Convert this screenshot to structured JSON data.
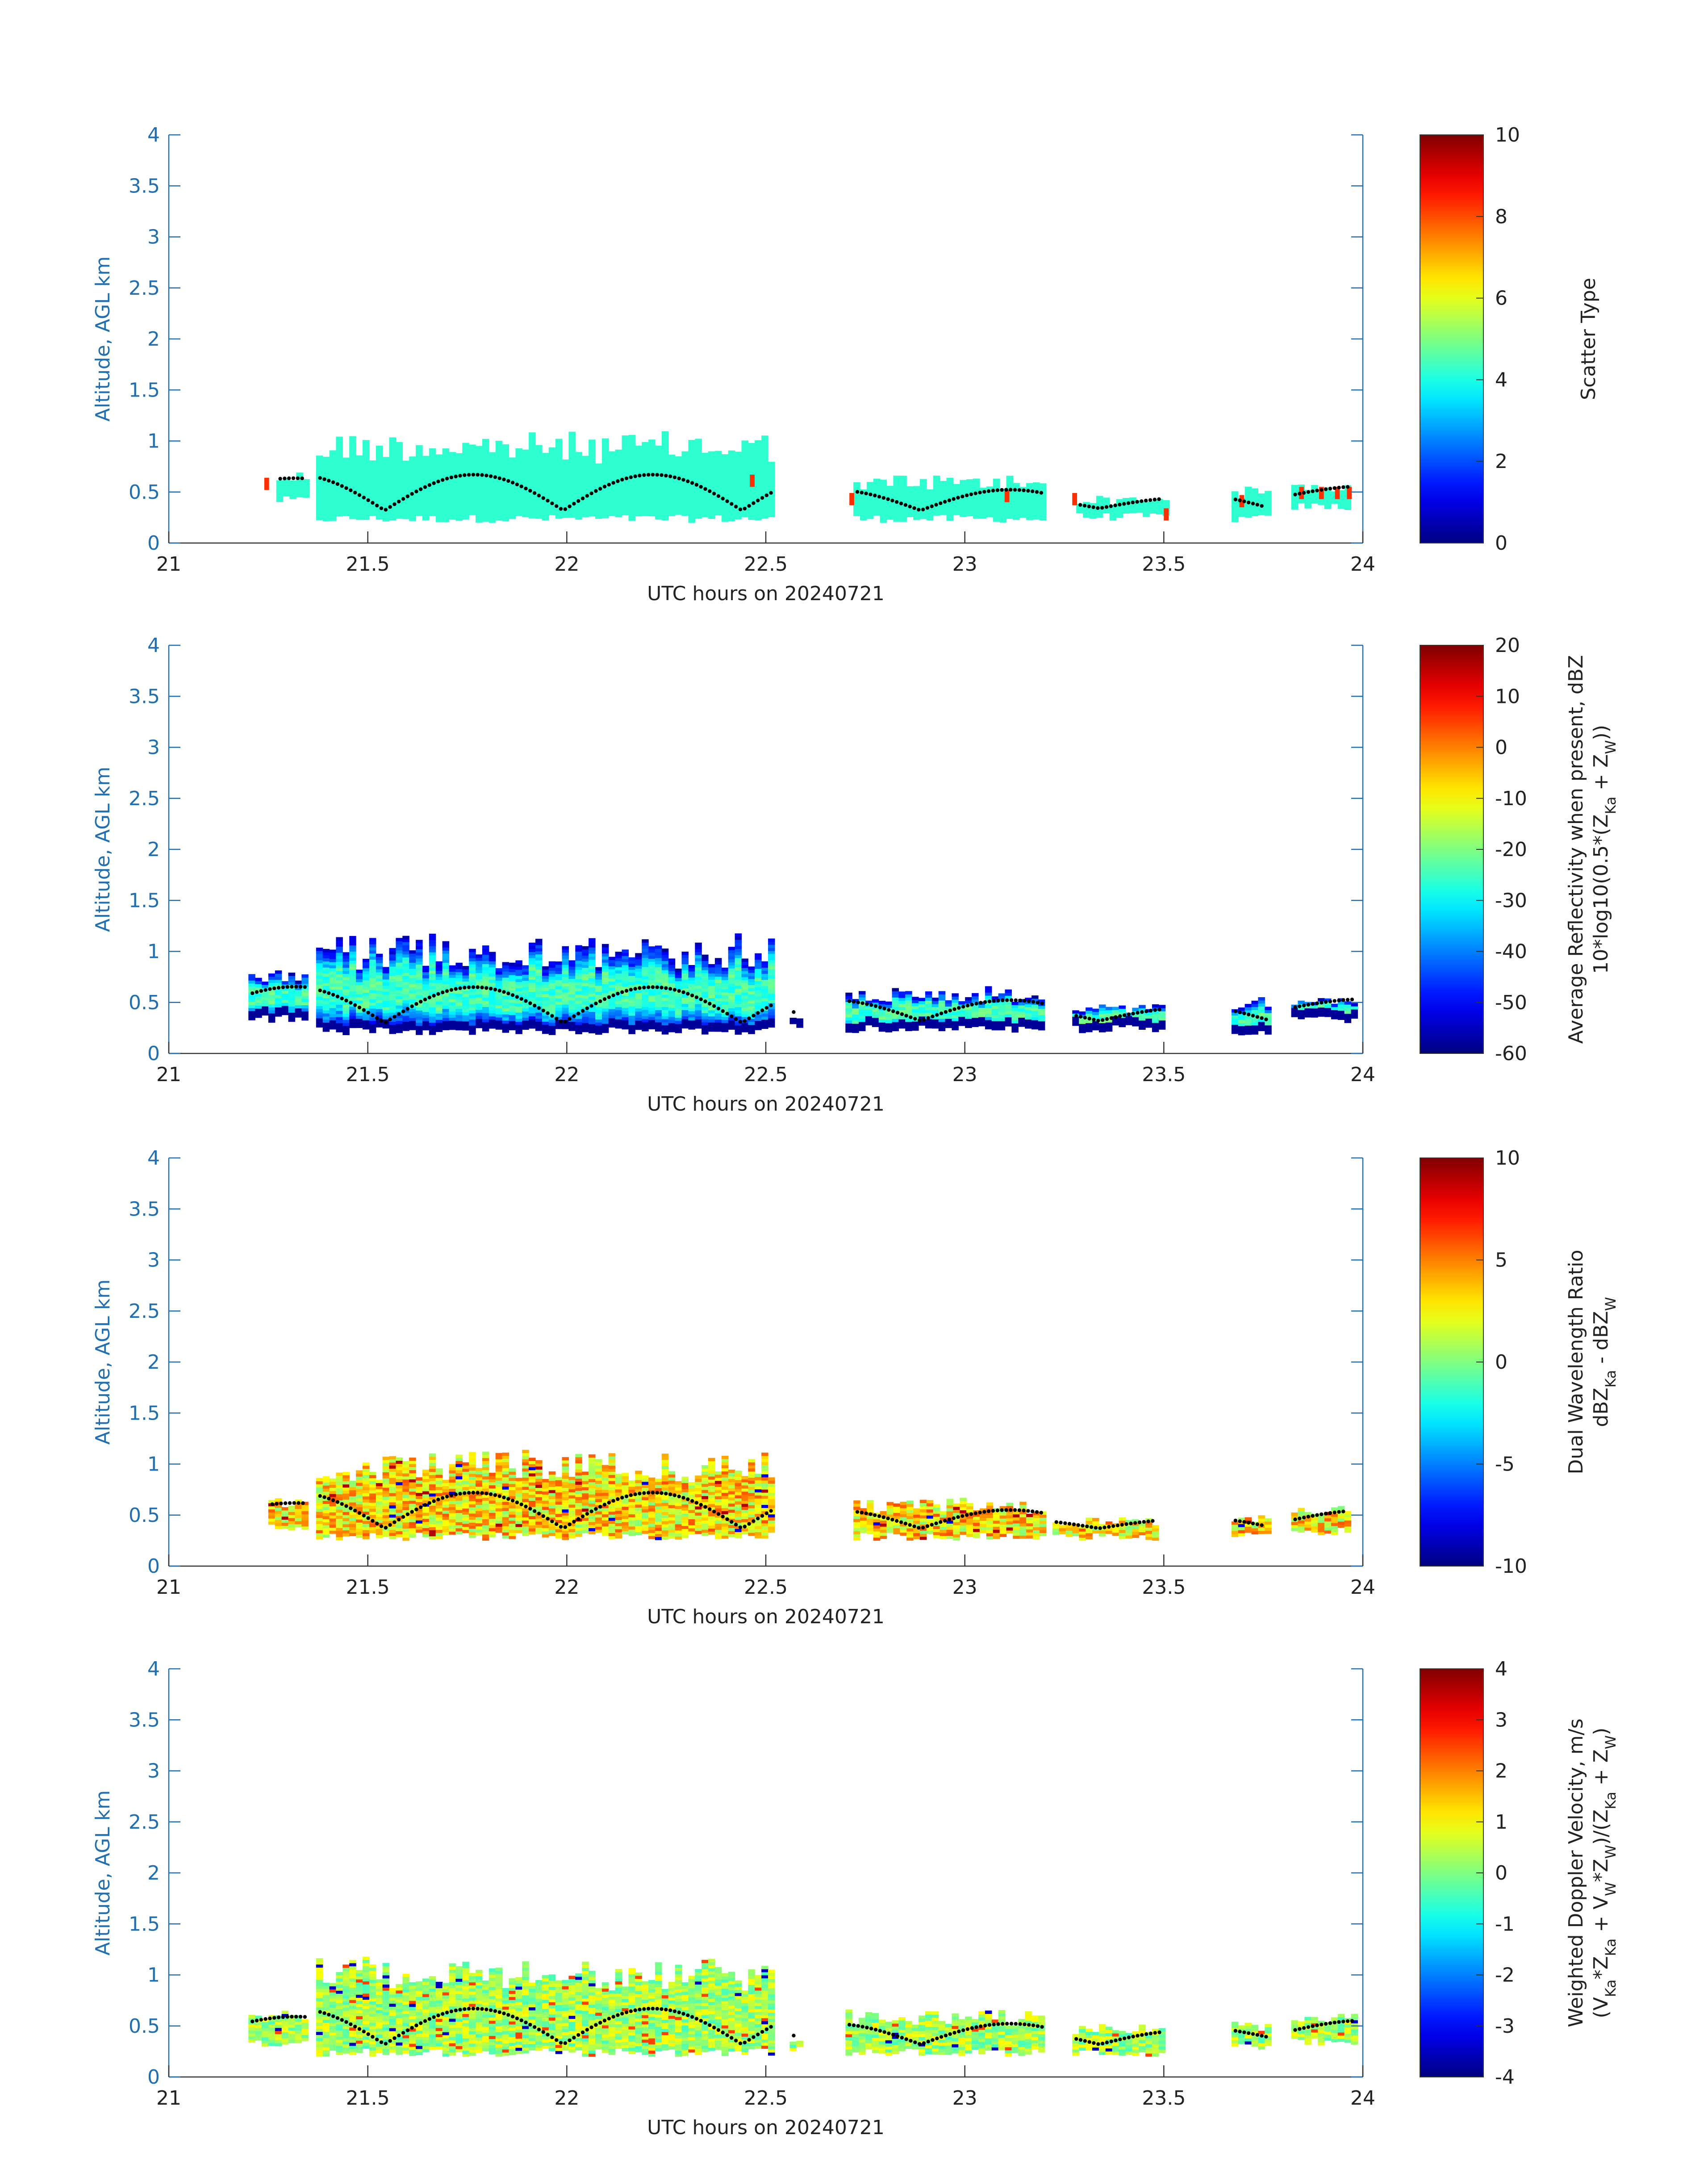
{
  "chart_data": [
    {
      "type": "heatmap",
      "title": "",
      "xlabel": "UTC hours on 20240721",
      "ylabel": "Altitude, AGL km",
      "xlim": [
        21,
        24
      ],
      "ylim": [
        0,
        4
      ],
      "xticks": [
        "21",
        "21.5",
        "22",
        "22.5",
        "23",
        "23.5",
        "24"
      ],
      "yticks": [
        "0",
        "0.5",
        "1",
        "1.5",
        "2",
        "2.5",
        "3",
        "3.5",
        "4"
      ],
      "colorbar": {
        "label": [
          "Scatter Type"
        ],
        "range": [
          0,
          10
        ],
        "ticks": [
          "0",
          "2",
          "4",
          "6",
          "8",
          "10"
        ],
        "colormap": "jet"
      },
      "field": "scatter_type",
      "segments": [
        {
          "start": 21.27,
          "end": 21.35,
          "base": 0.38,
          "top": 0.68
        },
        {
          "start": 21.37,
          "end": 22.52,
          "base": 0.2,
          "top": 1.08
        },
        {
          "start": 22.72,
          "end": 23.2,
          "base": 0.2,
          "top": 0.65
        },
        {
          "start": 23.28,
          "end": 23.5,
          "base": 0.22,
          "top": 0.45
        },
        {
          "start": 23.67,
          "end": 23.76,
          "base": 0.2,
          "top": 0.55
        },
        {
          "start": 23.82,
          "end": 23.97,
          "base": 0.32,
          "top": 0.58
        }
      ],
      "dominant_value": 4.2,
      "outlier_value": 8.3,
      "outlier_positions": [
        {
          "t": 21.24,
          "z": 0.52
        },
        {
          "t": 22.46,
          "z": 0.55
        },
        {
          "t": 22.71,
          "z": 0.37
        },
        {
          "t": 23.1,
          "z": 0.4
        },
        {
          "t": 23.27,
          "z": 0.37
        },
        {
          "t": 23.5,
          "z": 0.22
        },
        {
          "t": 23.69,
          "z": 0.35
        },
        {
          "t": 23.84,
          "z": 0.43
        },
        {
          "t": 23.89,
          "z": 0.43
        },
        {
          "t": 23.93,
          "z": 0.43
        },
        {
          "t": 23.96,
          "z": 0.43
        }
      ],
      "cloud_base_dots": "black dotted trace of cloud-base altitude (approx. 0.3–0.75 km)"
    },
    {
      "type": "heatmap",
      "title": "",
      "xlabel": "UTC hours on 20240721",
      "ylabel": "Altitude, AGL km",
      "xlim": [
        21,
        24
      ],
      "ylim": [
        0,
        4
      ],
      "xticks": [
        "21",
        "21.5",
        "22",
        "22.5",
        "23",
        "23.5",
        "24"
      ],
      "yticks": [
        "0",
        "0.5",
        "1",
        "1.5",
        "2",
        "2.5",
        "3",
        "3.5",
        "4"
      ],
      "colorbar": {
        "label": [
          "Average Reflectivity when present, dBZ",
          "10*log10(0.5*(Z_Ka + Z_W))"
        ],
        "range": [
          -60,
          20
        ],
        "ticks": [
          "-60",
          "-50",
          "-40",
          "-30",
          "-20",
          "-10",
          "0",
          "10",
          "20"
        ],
        "colormap": "jet"
      },
      "field": "average_reflectivity_dBZ",
      "segments": [
        {
          "start": 21.2,
          "end": 21.35,
          "base": 0.3,
          "top": 0.82
        },
        {
          "start": 21.37,
          "end": 22.52,
          "base": 0.18,
          "top": 1.15
        },
        {
          "start": 22.56,
          "end": 22.58,
          "base": 0.25,
          "top": 0.35
        },
        {
          "start": 22.7,
          "end": 23.2,
          "base": 0.2,
          "top": 0.65
        },
        {
          "start": 23.27,
          "end": 23.5,
          "base": 0.2,
          "top": 0.48
        },
        {
          "start": 23.67,
          "end": 23.77,
          "base": 0.18,
          "top": 0.55
        },
        {
          "start": 23.82,
          "end": 23.98,
          "base": 0.3,
          "top": 0.55
        }
      ],
      "value_range_observed": [
        -60,
        -20
      ],
      "core_value": -25,
      "edge_value": -55
    },
    {
      "type": "heatmap",
      "title": "",
      "xlabel": "UTC hours on 20240721",
      "ylabel": "Altitude, AGL km",
      "xlim": [
        21,
        24
      ],
      "ylim": [
        0,
        4
      ],
      "xticks": [
        "21",
        "21.5",
        "22",
        "22.5",
        "23",
        "23.5",
        "24"
      ],
      "yticks": [
        "0",
        "0.5",
        "1",
        "1.5",
        "2",
        "2.5",
        "3",
        "3.5",
        "4"
      ],
      "colorbar": {
        "label": [
          "Dual Wavelength Ratio",
          "dBZ_Ka - dBZ_W"
        ],
        "range": [
          -10,
          10
        ],
        "ticks": [
          "-10",
          "-5",
          "0",
          "5",
          "10"
        ],
        "colormap": "jet"
      },
      "field": "dual_wavelength_ratio_dB",
      "segments": [
        {
          "start": 21.25,
          "end": 21.35,
          "base": 0.35,
          "top": 0.68
        },
        {
          "start": 21.37,
          "end": 22.52,
          "base": 0.25,
          "top": 1.12
        },
        {
          "start": 22.72,
          "end": 23.2,
          "base": 0.25,
          "top": 0.65
        },
        {
          "start": 23.22,
          "end": 23.48,
          "base": 0.25,
          "top": 0.45
        },
        {
          "start": 23.67,
          "end": 23.76,
          "base": 0.25,
          "top": 0.5
        },
        {
          "start": 23.82,
          "end": 23.96,
          "base": 0.3,
          "top": 0.58
        }
      ],
      "typical_value": 3,
      "value_range_observed": [
        -8,
        9
      ]
    },
    {
      "type": "heatmap",
      "title": "",
      "xlabel": "UTC hours on 20240721",
      "ylabel": "Altitude, AGL km",
      "xlim": [
        21,
        24
      ],
      "ylim": [
        0,
        4
      ],
      "xticks": [
        "21",
        "21.5",
        "22",
        "22.5",
        "23",
        "23.5",
        "24"
      ],
      "yticks": [
        "0",
        "0.5",
        "1",
        "1.5",
        "2",
        "2.5",
        "3",
        "3.5",
        "4"
      ],
      "colorbar": {
        "label": [
          "Weighted Doppler Velocity, m/s",
          "(V_Ka*Z_Ka + V_W*Z_W)/(Z_Ka + Z_W)"
        ],
        "range": [
          -4,
          4
        ],
        "ticks": [
          "-4",
          "-3",
          "-2",
          "-1",
          "0",
          "1",
          "2",
          "3",
          "4"
        ],
        "colormap": "jet"
      },
      "field": "weighted_doppler_velocity_ms",
      "segments": [
        {
          "start": 21.2,
          "end": 21.35,
          "base": 0.3,
          "top": 0.68
        },
        {
          "start": 21.37,
          "end": 22.52,
          "base": 0.2,
          "top": 1.15
        },
        {
          "start": 22.56,
          "end": 22.58,
          "base": 0.25,
          "top": 0.35
        },
        {
          "start": 22.7,
          "end": 23.2,
          "base": 0.2,
          "top": 0.65
        },
        {
          "start": 23.27,
          "end": 23.5,
          "base": 0.2,
          "top": 0.5
        },
        {
          "start": 23.67,
          "end": 23.77,
          "base": 0.25,
          "top": 0.52
        },
        {
          "start": 23.82,
          "end": 23.98,
          "base": 0.3,
          "top": 0.6
        }
      ],
      "typical_value": 0.3,
      "value_range_observed": [
        -4,
        3
      ]
    }
  ]
}
